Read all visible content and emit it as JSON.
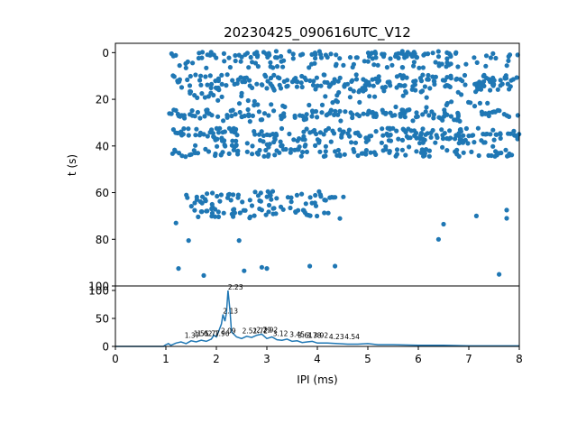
{
  "chart_data": [
    {
      "type": "scatter",
      "title": "20230425_090616UTC_V12",
      "xlabel": "",
      "ylabel": "t (s)",
      "xlim": [
        0,
        8
      ],
      "ylim": [
        100,
        -4
      ],
      "y_inverted": true,
      "yticks": [
        "0",
        "20",
        "40",
        "60",
        "80",
        "100"
      ],
      "marker_color": "#1f77b4",
      "band_rows": [
        {
          "t": 1,
          "x_range": [
            1.05,
            8.0
          ],
          "count": 105
        },
        {
          "t": 5,
          "x_range": [
            1.1,
            7.95
          ],
          "count": 55
        },
        {
          "t": 11,
          "x_range": [
            1.05,
            8.0
          ],
          "count": 80
        },
        {
          "t": 13,
          "x_range": [
            1.2,
            7.9
          ],
          "count": 75
        },
        {
          "t": 15,
          "x_range": [
            1.3,
            8.0
          ],
          "count": 55
        },
        {
          "t": 18,
          "x_range": [
            1.4,
            7.8
          ],
          "count": 30
        },
        {
          "t": 22,
          "x_range": [
            1.6,
            7.5
          ],
          "count": 25
        },
        {
          "t": 26,
          "x_range": [
            1.05,
            8.0
          ],
          "count": 110
        },
        {
          "t": 28,
          "x_range": [
            1.2,
            7.0
          ],
          "count": 40
        },
        {
          "t": 34,
          "x_range": [
            1.05,
            8.0
          ],
          "count": 95
        },
        {
          "t": 36,
          "x_range": [
            1.2,
            8.0
          ],
          "count": 70
        },
        {
          "t": 39,
          "x_range": [
            1.3,
            7.6
          ],
          "count": 60
        },
        {
          "t": 43,
          "x_range": [
            1.05,
            8.0
          ],
          "count": 105
        },
        {
          "t": 61,
          "x_range": [
            1.35,
            4.6
          ],
          "count": 38
        },
        {
          "t": 64,
          "x_range": [
            1.5,
            4.2
          ],
          "count": 22
        },
        {
          "t": 67,
          "x_range": [
            1.5,
            4.0
          ],
          "count": 28
        },
        {
          "t": 70,
          "x_range": [
            1.6,
            4.5
          ],
          "count": 24
        }
      ],
      "sparse_points": [
        {
          "x": 1.2,
          "y": 73
        },
        {
          "x": 1.45,
          "y": 80.5
        },
        {
          "x": 2.45,
          "y": 80.5
        },
        {
          "x": 6.4,
          "y": 80
        },
        {
          "x": 7.15,
          "y": 70
        },
        {
          "x": 7.75,
          "y": 71
        },
        {
          "x": 7.75,
          "y": 67.5
        },
        {
          "x": 6.5,
          "y": 73.5
        },
        {
          "x": 1.25,
          "y": 92.5
        },
        {
          "x": 1.75,
          "y": 95.5
        },
        {
          "x": 2.55,
          "y": 93.5
        },
        {
          "x": 2.9,
          "y": 92
        },
        {
          "x": 3.0,
          "y": 92.5
        },
        {
          "x": 3.85,
          "y": 91.5
        },
        {
          "x": 4.35,
          "y": 91.5
        },
        {
          "x": 7.6,
          "y": 95
        }
      ]
    },
    {
      "type": "line",
      "title": "",
      "xlabel": "IPI (ms)",
      "ylabel": "",
      "xlim": [
        0,
        8
      ],
      "ylim": [
        0,
        108
      ],
      "xticks": [
        "0",
        "1",
        "2",
        "3",
        "4",
        "5",
        "6",
        "7",
        "8"
      ],
      "yticks": [
        "0",
        "50",
        "100"
      ],
      "line_color": "#1f77b4",
      "x": [
        0,
        0.95,
        1.0,
        1.05,
        1.1,
        1.2,
        1.3,
        1.4,
        1.5,
        1.6,
        1.7,
        1.8,
        1.9,
        1.95,
        2.0,
        2.05,
        2.1,
        2.13,
        2.17,
        2.2,
        2.23,
        2.27,
        2.3,
        2.4,
        2.5,
        2.6,
        2.7,
        2.8,
        2.9,
        3.0,
        3.1,
        3.2,
        3.3,
        3.4,
        3.5,
        3.6,
        3.7,
        3.8,
        3.9,
        4.0,
        4.2,
        4.4,
        4.6,
        4.8,
        5.0,
        5.2,
        5.5,
        6.0,
        6.5,
        7.0,
        7.5,
        8.0
      ],
      "y": [
        0,
        0,
        3,
        5,
        2,
        6,
        8,
        5,
        10,
        8,
        11,
        9,
        13,
        20,
        17,
        28,
        40,
        57,
        45,
        60,
        100,
        64,
        26,
        17,
        14,
        18,
        16,
        20,
        22,
        14,
        17,
        12,
        11,
        13,
        9,
        10,
        7,
        8,
        9,
        6,
        6,
        5,
        4,
        4,
        5,
        3,
        3,
        2,
        2,
        1,
        1,
        1
      ],
      "peak_labels": [
        {
          "x": 2.23,
          "y": 100,
          "text": "2.23"
        },
        {
          "x": 2.13,
          "y": 57,
          "text": "2.13"
        },
        {
          "x": 2.09,
          "y": 22,
          "text": "2.09"
        },
        {
          "x": 1.37,
          "y": 14,
          "text": "1.37"
        },
        {
          "x": 1.55,
          "y": 17,
          "text": "1.55"
        },
        {
          "x": 1.62,
          "y": 17,
          "text": "1.62"
        },
        {
          "x": 1.77,
          "y": 17,
          "text": "1.77"
        },
        {
          "x": 1.96,
          "y": 17,
          "text": "1.96"
        },
        {
          "x": 2.51,
          "y": 22,
          "text": "2.51"
        },
        {
          "x": 2.72,
          "y": 22,
          "text": "2.72"
        },
        {
          "x": 2.79,
          "y": 23,
          "text": "2.79"
        },
        {
          "x": 2.92,
          "y": 23,
          "text": "2.92"
        },
        {
          "x": 3.12,
          "y": 17,
          "text": "3.12"
        },
        {
          "x": 3.45,
          "y": 15,
          "text": "3.45"
        },
        {
          "x": 3.61,
          "y": 14,
          "text": "3.61"
        },
        {
          "x": 3.78,
          "y": 14,
          "text": "3.78"
        },
        {
          "x": 3.92,
          "y": 14,
          "text": "3.92"
        },
        {
          "x": 4.23,
          "y": 11,
          "text": "4.23"
        },
        {
          "x": 4.54,
          "y": 11,
          "text": "4.54"
        }
      ]
    }
  ]
}
